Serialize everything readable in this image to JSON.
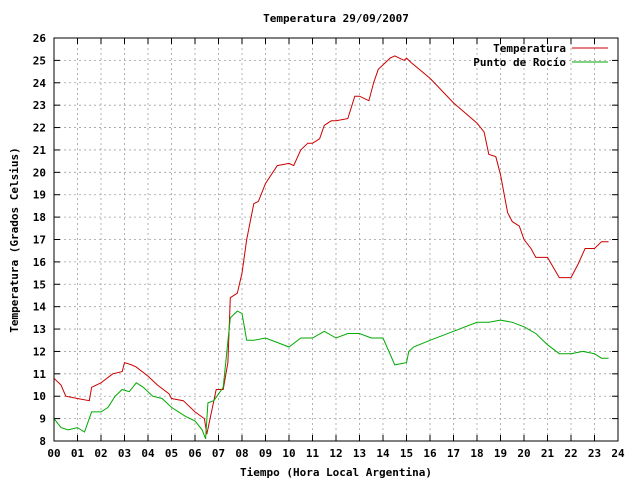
{
  "chart_data": {
    "type": "line",
    "title": "Temperatura 29/09/2007",
    "xlabel": "Tiempo (Hora Local Argentina)",
    "ylabel": "Temperatura (Grados Celsius)",
    "xlim": [
      0,
      24
    ],
    "ylim": [
      8,
      26
    ],
    "x_tick_labels": [
      "00",
      "01",
      "02",
      "03",
      "04",
      "05",
      "06",
      "07",
      "08",
      "09",
      "10",
      "11",
      "12",
      "13",
      "14",
      "15",
      "16",
      "17",
      "18",
      "19",
      "20",
      "21",
      "22",
      "23",
      "24"
    ],
    "y_tick_labels": [
      "8",
      "9",
      "10",
      "11",
      "12",
      "13",
      "14",
      "15",
      "16",
      "17",
      "18",
      "19",
      "20",
      "21",
      "22",
      "23",
      "24",
      "25",
      "26"
    ],
    "grid": true,
    "legend_position": "top-right",
    "series": [
      {
        "name": "Temperatura",
        "color": "#cc0000",
        "x": [
          0.0,
          0.3,
          0.5,
          1.0,
          1.5,
          1.6,
          2.0,
          2.5,
          2.9,
          3.0,
          3.3,
          3.5,
          4.0,
          4.4,
          4.9,
          5.0,
          5.5,
          6.0,
          6.4,
          6.5,
          6.9,
          7.0,
          7.2,
          7.4,
          7.5,
          7.8,
          8.0,
          8.2,
          8.5,
          8.7,
          9.0,
          9.5,
          10.0,
          10.2,
          10.5,
          10.8,
          11.0,
          11.3,
          11.5,
          11.8,
          12.0,
          12.5,
          12.8,
          13.0,
          13.4,
          13.6,
          13.8,
          14.0,
          14.3,
          14.5,
          14.9,
          15.0,
          15.2,
          16.0,
          17.0,
          18.0,
          18.3,
          18.5,
          18.8,
          19.0,
          19.3,
          19.5,
          19.8,
          20.0,
          20.3,
          20.5,
          21.0,
          21.5,
          21.8,
          22.0,
          22.3,
          22.6,
          23.0,
          23.3,
          23.6
        ],
        "y": [
          10.8,
          10.5,
          10.0,
          9.9,
          9.8,
          10.4,
          10.6,
          11.0,
          11.1,
          11.5,
          11.4,
          11.3,
          10.9,
          10.5,
          10.1,
          9.9,
          9.8,
          9.3,
          9.0,
          8.3,
          10.3,
          10.3,
          10.3,
          11.5,
          14.4,
          14.6,
          15.5,
          17.0,
          18.6,
          18.7,
          19.5,
          20.3,
          20.4,
          20.3,
          21.0,
          21.3,
          21.3,
          21.5,
          22.1,
          22.3,
          22.3,
          22.4,
          23.4,
          23.4,
          23.2,
          24.0,
          24.6,
          24.8,
          25.1,
          25.2,
          25.0,
          25.1,
          24.9,
          24.2,
          23.1,
          22.2,
          21.8,
          20.8,
          20.7,
          19.9,
          18.2,
          17.8,
          17.6,
          17.0,
          16.6,
          16.2,
          16.2,
          15.3,
          15.3,
          15.3,
          15.9,
          16.6,
          16.6,
          16.9,
          16.9
        ]
      },
      {
        "name": "Punto de Rocío",
        "color": "#00aa00",
        "x": [
          0.0,
          0.3,
          0.6,
          1.0,
          1.3,
          1.6,
          2.0,
          2.3,
          2.6,
          2.9,
          3.2,
          3.5,
          3.8,
          4.2,
          4.6,
          5.0,
          5.3,
          5.6,
          6.0,
          6.3,
          6.45,
          6.55,
          6.8,
          7.2,
          7.5,
          7.8,
          8.0,
          8.2,
          8.5,
          9.0,
          9.5,
          10.0,
          10.5,
          11.0,
          11.5,
          12.0,
          12.5,
          13.0,
          13.5,
          14.0,
          14.5,
          15.0,
          15.1,
          15.3,
          16.0,
          17.0,
          18.0,
          18.5,
          19.0,
          19.5,
          20.0,
          20.5,
          21.0,
          21.5,
          22.0,
          22.5,
          23.0,
          23.3,
          23.6
        ],
        "y": [
          9.0,
          8.6,
          8.5,
          8.6,
          8.4,
          9.3,
          9.3,
          9.5,
          10.0,
          10.3,
          10.2,
          10.6,
          10.4,
          10.0,
          9.9,
          9.5,
          9.3,
          9.1,
          8.9,
          8.5,
          8.1,
          9.7,
          9.8,
          10.4,
          13.5,
          13.8,
          13.7,
          12.5,
          12.5,
          12.6,
          12.4,
          12.2,
          12.6,
          12.6,
          12.9,
          12.6,
          12.8,
          12.8,
          12.6,
          12.6,
          11.4,
          11.5,
          12.0,
          12.2,
          12.5,
          12.9,
          13.3,
          13.3,
          13.4,
          13.3,
          13.1,
          12.8,
          12.3,
          11.9,
          11.9,
          12.0,
          11.9,
          11.7,
          11.7
        ]
      }
    ]
  }
}
